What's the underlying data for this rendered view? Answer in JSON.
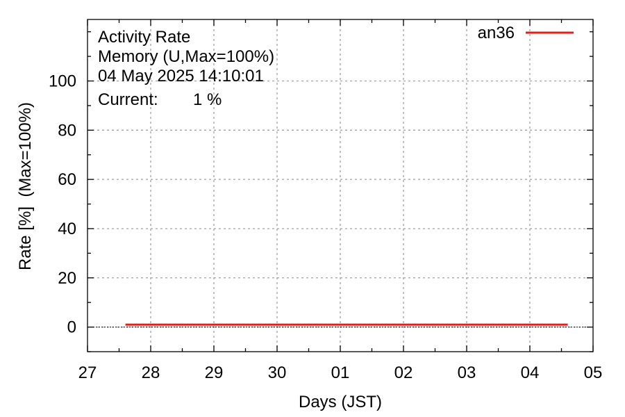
{
  "info": {
    "line1": "Activity Rate",
    "line2": "Memory (U,Max=100%)",
    "line3": "04 May 2025 14:10:01",
    "current_label": "Current:",
    "current_value": "1 %"
  },
  "colors": {
    "series": "#e0201a",
    "grid": "#a0a0a0",
    "axis": "#000000"
  },
  "chart_data": {
    "type": "line",
    "title": "",
    "xlabel": "Days (JST)",
    "ylabel": "Rate [%]  (Max=100%)",
    "xlim": [
      27,
      35
    ],
    "ylim": [
      -10,
      125
    ],
    "x_ticks": [
      27,
      28,
      29,
      30,
      31,
      32,
      33,
      34,
      35
    ],
    "x_tick_labels": [
      "27",
      "28",
      "29",
      "30",
      "01",
      "02",
      "03",
      "04",
      "05"
    ],
    "y_ticks": [
      0,
      20,
      40,
      60,
      80,
      100
    ],
    "y_tick_labels": [
      "0",
      "20",
      "40",
      "60",
      "80",
      "100"
    ],
    "grid": true,
    "legend_position": "top-right",
    "series": [
      {
        "name": "an36",
        "x": [
          27.6,
          28.0,
          28.5,
          29.0,
          29.5,
          30.0,
          30.5,
          31.0,
          31.5,
          32.0,
          32.5,
          33.0,
          33.5,
          34.0,
          34.6
        ],
        "values": [
          1,
          1,
          1,
          1,
          1,
          1,
          1,
          1,
          1,
          1,
          1,
          1,
          1,
          1,
          1
        ]
      }
    ]
  }
}
